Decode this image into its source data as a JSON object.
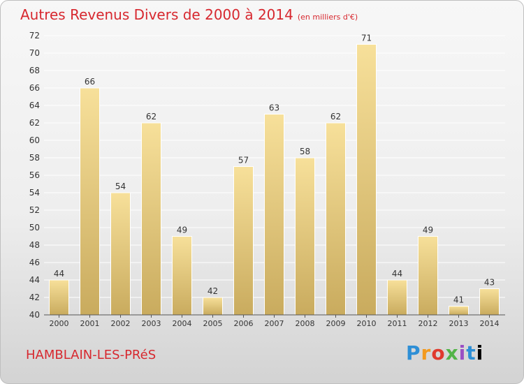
{
  "header": {
    "title": "Autres Revenus Divers de 2000 à 2014",
    "unit": "(en milliers d'€)"
  },
  "footer": {
    "place": "HAMBLAIN-LES-PRéS",
    "logo_letters": [
      "P",
      "r",
      "o",
      "x",
      "i",
      "t",
      "i"
    ]
  },
  "colors": {
    "title": "#d7282f",
    "bar_top": "#f7e09a",
    "bar_bottom": "#c9ab5e",
    "grid": "#ffffff",
    "axis_text": "#333333"
  },
  "chart_data": {
    "type": "bar",
    "title": "Autres Revenus Divers de 2000 à 2014",
    "subtitle": "(en milliers d'€)",
    "categories": [
      "2000",
      "2001",
      "2002",
      "2003",
      "2004",
      "2005",
      "2006",
      "2007",
      "2008",
      "2009",
      "2010",
      "2011",
      "2012",
      "2013",
      "2014"
    ],
    "values": [
      44,
      66,
      54,
      62,
      49,
      42,
      57,
      63,
      58,
      62,
      71,
      44,
      49,
      41,
      43
    ],
    "ylim": [
      40,
      72
    ],
    "yticks": [
      40,
      42,
      44,
      46,
      48,
      50,
      52,
      54,
      56,
      58,
      60,
      62,
      64,
      66,
      68,
      70,
      72
    ],
    "grid": true,
    "xlabel": "",
    "ylabel": ""
  }
}
